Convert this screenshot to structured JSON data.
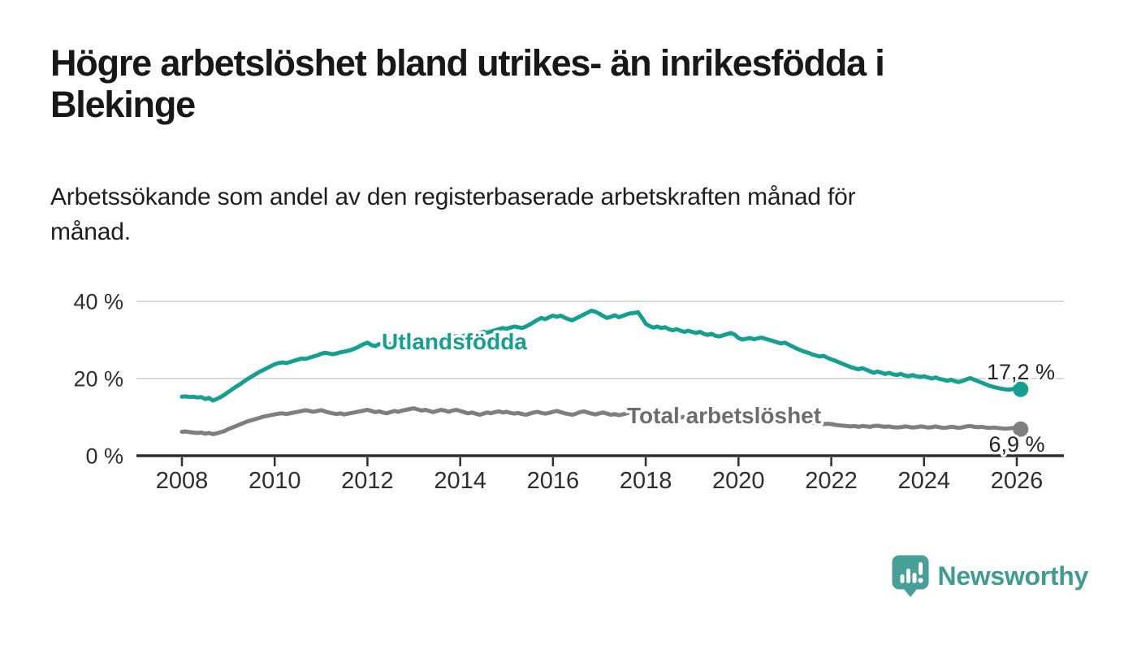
{
  "header": {
    "title_line1": "Högre arbetslöshet bland utrikes- än inrikesfödda i",
    "title_line2": "Blekinge",
    "subtitle_line1": "Arbetssökande som andel av den registerbaserade arbetskraften månad för",
    "subtitle_line2": "månad."
  },
  "footer": {
    "brand": "Newsworthy"
  },
  "colors": {
    "accent_teal": "#14a091",
    "line_gray": "#7e7e83",
    "label_gray": "#6c6c71",
    "axis": "#2f2f2f",
    "grid": "#dadada",
    "tick_text": "#2e2e2e",
    "value_text": "#232323",
    "logo_teal": "#47a097",
    "logo_text_teal": "#3e9c92"
  },
  "chart_data": {
    "type": "line",
    "unit": "%",
    "frequency": "monthly",
    "x_start_year": 2008,
    "x_end": "2026-02",
    "x_tick_labels": [
      "2008",
      "2010",
      "2012",
      "2014",
      "2016",
      "2018",
      "2020",
      "2022",
      "2024",
      "2026"
    ],
    "y_tick_values": [
      0,
      20,
      40
    ],
    "y_tick_labels": [
      "0 %",
      "20 %",
      "40 %"
    ],
    "ylim": [
      0,
      42
    ],
    "grid": "horizontal-only",
    "legend_position": "inline-labels",
    "series": [
      {
        "name": "Utlandsfödda",
        "color": "#14a091",
        "label_color": "#14a091",
        "end_value": 17.2,
        "end_label": "17,2 %",
        "values": [
          15.3,
          15.4,
          15.2,
          15.3,
          15.1,
          15.2,
          14.7,
          15.0,
          14.3,
          14.7,
          15.2,
          15.8,
          16.5,
          17.2,
          17.9,
          18.5,
          19.2,
          19.9,
          20.5,
          21.1,
          21.7,
          22.2,
          22.7,
          23.2,
          23.7,
          24.0,
          24.2,
          24.0,
          24.3,
          24.6,
          24.9,
          25.2,
          25.1,
          25.4,
          25.7,
          26.0,
          26.4,
          26.7,
          26.5,
          26.3,
          26.5,
          26.8,
          27.0,
          27.2,
          27.5,
          27.9,
          28.4,
          28.9,
          29.3,
          28.7,
          28.4,
          28.9,
          29.1,
          28.8,
          29.0,
          29.2,
          29.0,
          29.3,
          29.5,
          29.7,
          29.9,
          30.1,
          29.8,
          30.1,
          30.3,
          30.0,
          30.3,
          30.5,
          30.7,
          30.5,
          30.8,
          31.0,
          30.8,
          31.1,
          31.4,
          31.2,
          31.5,
          31.8,
          32.1,
          31.9,
          32.2,
          32.5,
          32.8,
          33.1,
          32.9,
          33.2,
          33.5,
          33.3,
          33.1,
          33.5,
          34.0,
          34.6,
          35.2,
          35.7,
          35.4,
          35.9,
          36.3,
          36.0,
          36.3,
          35.8,
          35.4,
          35.1,
          35.6,
          36.1,
          36.6,
          37.1,
          37.6,
          37.3,
          36.8,
          36.2,
          35.7,
          36.0,
          36.4,
          35.9,
          36.2,
          36.6,
          36.9,
          37.0,
          37.2,
          35.8,
          34.2,
          33.6,
          33.2,
          33.5,
          33.1,
          33.3,
          32.8,
          32.5,
          32.8,
          32.4,
          32.1,
          32.4,
          32.1,
          31.8,
          32.1,
          31.6,
          31.3,
          31.6,
          31.1,
          30.9,
          31.2,
          31.5,
          31.8,
          31.4,
          30.5,
          30.1,
          30.3,
          30.5,
          30.2,
          30.4,
          30.6,
          30.3,
          30.0,
          29.7,
          29.4,
          29.1,
          29.3,
          28.8,
          28.3,
          27.8,
          27.4,
          27.0,
          26.7,
          26.3,
          26.0,
          25.7,
          25.9,
          25.4,
          25.0,
          24.6,
          24.2,
          23.8,
          23.4,
          23.0,
          22.7,
          22.4,
          22.7,
          22.3,
          21.9,
          21.5,
          21.8,
          21.5,
          21.2,
          21.5,
          21.1,
          20.9,
          21.2,
          20.8,
          20.6,
          20.9,
          20.6,
          20.4,
          20.6,
          20.3,
          20.0,
          20.3,
          19.9,
          19.7,
          19.4,
          19.7,
          19.3,
          19.1,
          19.4,
          19.8,
          20.1,
          19.7,
          19.3,
          18.9,
          18.5,
          18.1,
          17.8,
          17.6,
          17.4,
          17.2,
          17.1,
          17.3,
          17.1,
          17.2
        ]
      },
      {
        "name": "Total arbetslöshet",
        "color": "#7e7e83",
        "label_color": "#6c6c71",
        "end_value": 6.9,
        "end_label": "6,9 %",
        "values": [
          6.2,
          6.3,
          6.1,
          6.0,
          5.9,
          6.0,
          5.7,
          5.9,
          5.6,
          5.8,
          6.1,
          6.4,
          6.9,
          7.3,
          7.7,
          8.1,
          8.5,
          8.9,
          9.2,
          9.5,
          9.8,
          10.1,
          10.3,
          10.5,
          10.7,
          10.9,
          11.0,
          10.8,
          11.0,
          11.2,
          11.4,
          11.6,
          11.8,
          11.6,
          11.4,
          11.6,
          11.8,
          11.5,
          11.2,
          11.0,
          10.8,
          11.0,
          10.7,
          10.9,
          11.1,
          11.3,
          11.5,
          11.7,
          11.9,
          11.6,
          11.3,
          11.5,
          11.2,
          11.0,
          11.3,
          11.6,
          11.4,
          11.7,
          11.9,
          12.1,
          12.3,
          12.0,
          11.7,
          11.9,
          11.6,
          11.3,
          11.6,
          11.9,
          11.7,
          11.4,
          11.7,
          11.9,
          11.6,
          11.3,
          11.0,
          11.2,
          10.9,
          10.6,
          10.9,
          11.2,
          11.0,
          11.3,
          11.5,
          11.2,
          11.4,
          11.1,
          10.9,
          11.1,
          10.8,
          10.6,
          10.9,
          11.2,
          11.4,
          11.1,
          10.9,
          11.1,
          11.4,
          11.6,
          11.3,
          11.0,
          10.8,
          10.6,
          10.9,
          11.3,
          11.5,
          11.2,
          10.9,
          10.7,
          11.0,
          11.2,
          10.9,
          10.6,
          10.8,
          10.5,
          10.7,
          11.0,
          11.2,
          10.9,
          10.6,
          10.4,
          10.6,
          10.3,
          10.1,
          10.3,
          10.0,
          9.8,
          10.1,
          10.3,
          10.1,
          9.9,
          10.1,
          10.3,
          10.1,
          9.9,
          9.7,
          9.9,
          9.6,
          9.4,
          9.7,
          10.0,
          9.8,
          9.6,
          9.8,
          10.0,
          10.2,
          10.4,
          10.7,
          10.9,
          10.6,
          10.8,
          10.5,
          10.3,
          10.5,
          10.2,
          10.0,
          9.9,
          9.8,
          9.6,
          9.4,
          9.2,
          9.0,
          8.8,
          8.6,
          8.5,
          8.6,
          8.4,
          8.2,
          8.3,
          8.2,
          8.0,
          7.9,
          7.8,
          7.7,
          7.6,
          7.7,
          7.5,
          7.7,
          7.6,
          7.5,
          7.7,
          7.8,
          7.6,
          7.5,
          7.6,
          7.4,
          7.3,
          7.4,
          7.6,
          7.5,
          7.3,
          7.4,
          7.6,
          7.5,
          7.3,
          7.4,
          7.6,
          7.4,
          7.2,
          7.3,
          7.5,
          7.4,
          7.2,
          7.4,
          7.6,
          7.7,
          7.5,
          7.4,
          7.5,
          7.3,
          7.2,
          7.3,
          7.2,
          7.1,
          7.0,
          7.1,
          7.2,
          7.0,
          6.9
        ]
      }
    ]
  }
}
